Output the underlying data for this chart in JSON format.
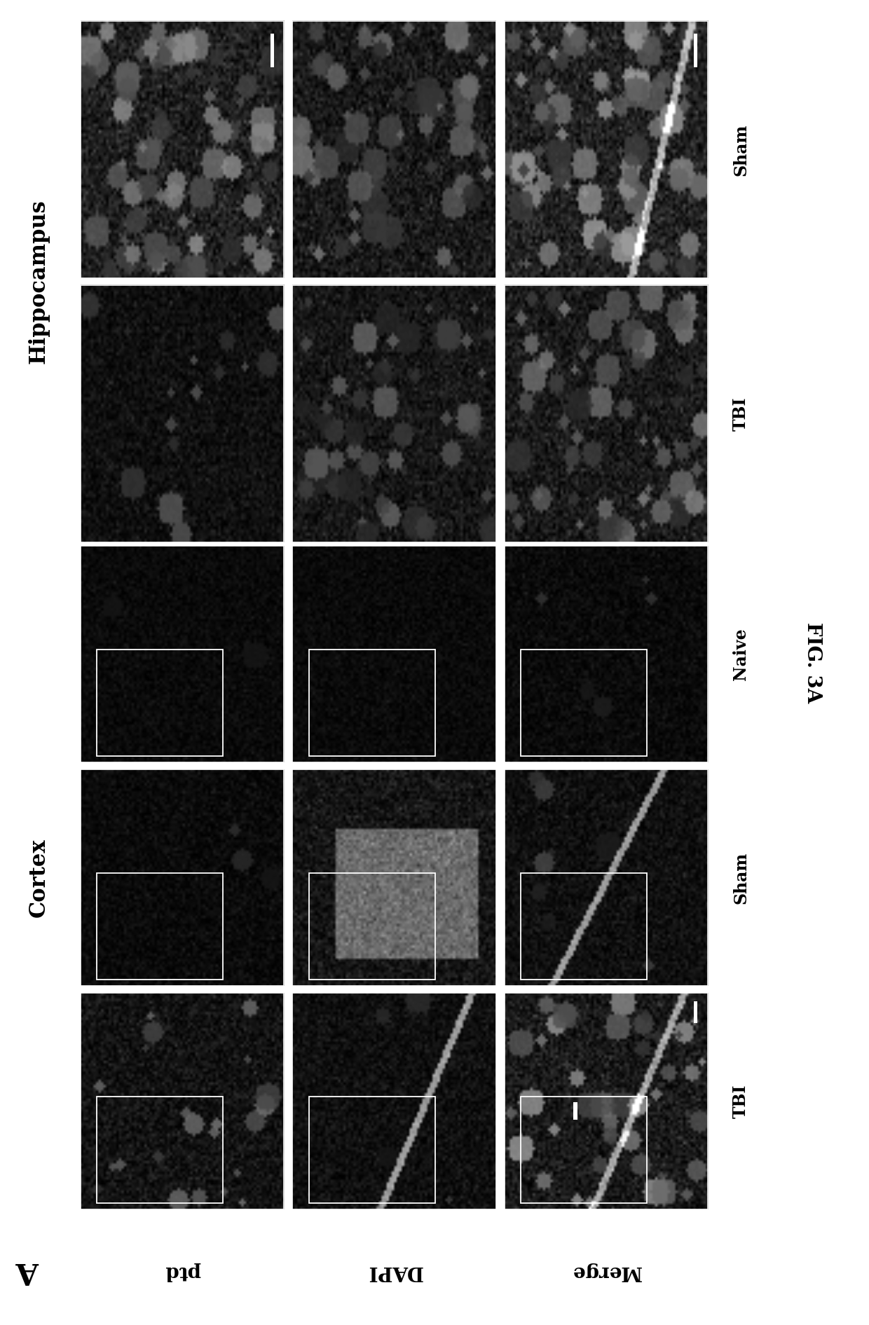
{
  "figure_label": "A",
  "figure_caption": "FIG. 3A",
  "row_labels": [
    "ptd",
    "DAPI",
    "Merge"
  ],
  "cortex_col_labels": [
    "Naive",
    "Sham",
    "TBI"
  ],
  "hippo_col_labels": [
    "Sham",
    "TBI"
  ],
  "section_label_cortex": "Cortex",
  "section_label_hippo": "Hippocampus",
  "bg_color": "#ffffff"
}
